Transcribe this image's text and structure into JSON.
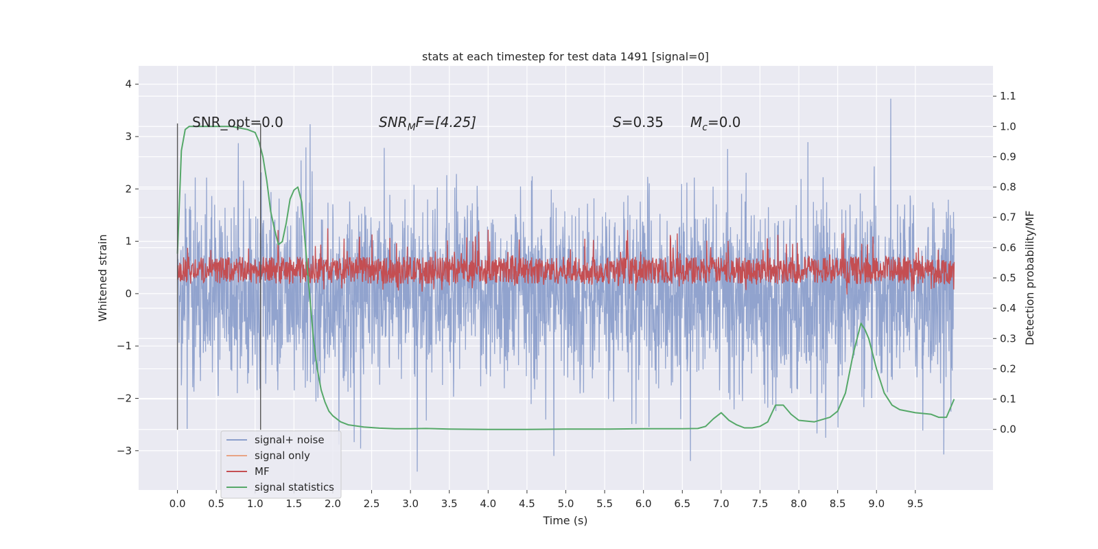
{
  "chart_data": {
    "type": "line",
    "title": "stats at each timestep for test data 1491 [signal=0]",
    "xlabel": "Time (s)",
    "ylabel_left": "Whitened strain",
    "ylabel_right": "Detection probability/MF",
    "xlim": [
      -0.5,
      10.5
    ],
    "ylim_left": [
      -3.75,
      4.35
    ],
    "ylim_right": [
      -0.2,
      1.2
    ],
    "x_ticks": [
      "0.0",
      "0.5",
      "1.0",
      "1.5",
      "2.0",
      "2.5",
      "3.0",
      "3.5",
      "4.0",
      "4.5",
      "5.0",
      "5.5",
      "6.0",
      "6.5",
      "7.0",
      "7.5",
      "8.0",
      "8.5",
      "9.0",
      "9.5"
    ],
    "y_ticks_left": [
      "−3",
      "−2",
      "−1",
      "0",
      "1",
      "2",
      "3",
      "4"
    ],
    "y_ticks_right": [
      "0.0",
      "0.1",
      "0.2",
      "0.3",
      "0.4",
      "0.5",
      "0.6",
      "0.7",
      "0.8",
      "0.9",
      "1.0",
      "1.1"
    ],
    "grid": true,
    "legend_position": "lower-left",
    "annotations": {
      "snr_opt": "SNR_opt=0.0",
      "snr_mf_base": "SNR",
      "snr_mf_sub": "M",
      "snr_mf_rest": "F=[4.25]",
      "s_symbol": "S",
      "s_value": "=0.35",
      "mc_symbol": "M",
      "mc_sub": "c",
      "mc_value": "=0.0"
    },
    "vertical_markers": [
      0.0,
      1.07
    ],
    "series": [
      {
        "name": "signal+ noise",
        "color": "#8c9fcb",
        "axis": "left",
        "description_range": [
          -3.4,
          4.05
        ],
        "noise_band": {
          "x_start": 0.0,
          "x_end": 10.0,
          "typical_min": -2.0,
          "typical_max": 2.0
        }
      },
      {
        "name": "signal only",
        "color": "#e8a384",
        "axis": "left",
        "values_constant": 0.0
      },
      {
        "name": "MF",
        "color": "#c44e52",
        "axis": "right",
        "band": {
          "x_start": 0.0,
          "x_end": 10.0,
          "low": 0.45,
          "high": 0.6
        }
      },
      {
        "name": "signal statistics",
        "color": "#55a868",
        "axis": "right",
        "x": [
          0.0,
          0.05,
          0.1,
          0.15,
          0.2,
          0.3,
          0.5,
          0.7,
          0.9,
          1.0,
          1.05,
          1.1,
          1.15,
          1.2,
          1.25,
          1.3,
          1.35,
          1.4,
          1.45,
          1.5,
          1.55,
          1.6,
          1.65,
          1.7,
          1.75,
          1.8,
          1.85,
          1.9,
          1.95,
          2.0,
          2.1,
          2.2,
          2.4,
          2.6,
          2.8,
          3.0,
          3.2,
          3.5,
          4.0,
          4.5,
          5.0,
          5.5,
          6.0,
          6.5,
          6.7,
          6.8,
          6.9,
          7.0,
          7.1,
          7.2,
          7.3,
          7.4,
          7.5,
          7.6,
          7.7,
          7.8,
          7.9,
          8.0,
          8.2,
          8.4,
          8.5,
          8.6,
          8.7,
          8.8,
          8.85,
          8.9,
          9.0,
          9.1,
          9.2,
          9.3,
          9.5,
          9.7,
          9.8,
          9.9,
          10.0
        ],
        "y": [
          0.58,
          0.92,
          0.99,
          1.0,
          1.0,
          1.0,
          1.0,
          1.0,
          0.99,
          0.98,
          0.95,
          0.9,
          0.82,
          0.72,
          0.66,
          0.61,
          0.62,
          0.68,
          0.76,
          0.79,
          0.8,
          0.75,
          0.6,
          0.45,
          0.3,
          0.2,
          0.13,
          0.09,
          0.06,
          0.045,
          0.025,
          0.015,
          0.008,
          0.004,
          0.002,
          0.002,
          0.003,
          0.001,
          0.0,
          0.0,
          0.001,
          0.001,
          0.002,
          0.002,
          0.003,
          0.01,
          0.035,
          0.055,
          0.03,
          0.015,
          0.005,
          0.005,
          0.01,
          0.025,
          0.08,
          0.08,
          0.05,
          0.03,
          0.025,
          0.04,
          0.06,
          0.12,
          0.25,
          0.35,
          0.33,
          0.3,
          0.2,
          0.12,
          0.08,
          0.065,
          0.055,
          0.05,
          0.04,
          0.04,
          0.1
        ]
      }
    ]
  }
}
